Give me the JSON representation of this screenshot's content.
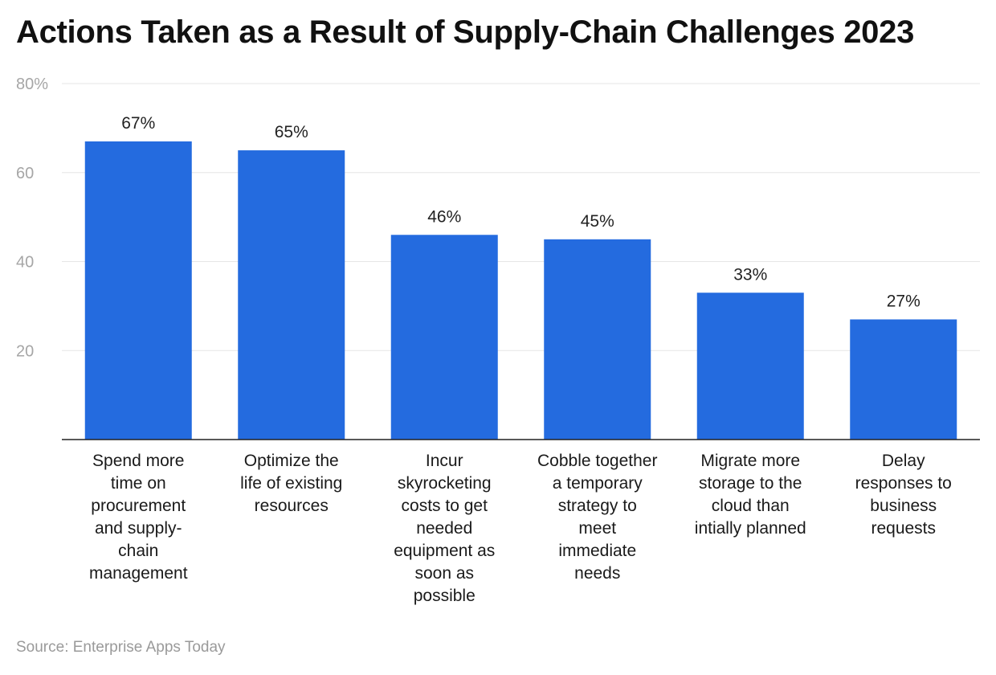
{
  "header": {
    "title": "Actions Taken as a Result of Supply-Chain Challenges 2023"
  },
  "footer": {
    "source": "Source: Enterprise Apps Today"
  },
  "chart_data": {
    "type": "bar",
    "title": "Actions Taken as a Result of Supply-Chain Challenges 2023",
    "xlabel": "",
    "ylabel": "",
    "categories": [
      "Spend more time on procurement and supply-chain management",
      "Optimize the life of existing resources",
      "Incur skyrocketing costs to get needed equipment as soon as possible",
      "Cobble together a temporary strategy to meet immediate needs",
      "Migrate more storage to the cloud than intially planned",
      "Delay responses to business requests"
    ],
    "category_lines": [
      [
        "Spend more",
        "time on",
        "procurement",
        "and supply-",
        "chain",
        "management"
      ],
      [
        "Optimize the",
        "life of existing",
        "resources"
      ],
      [
        "Incur",
        "skyrocketing",
        "costs to get",
        "needed",
        "equipment as",
        "soon as",
        "possible"
      ],
      [
        "Cobble together",
        "a temporary",
        "strategy to",
        "meet",
        "immediate",
        "needs"
      ],
      [
        "Migrate more",
        "storage to the",
        "cloud than",
        "intially planned"
      ],
      [
        "Delay",
        "responses to",
        "business",
        "requests"
      ]
    ],
    "values": [
      67,
      65,
      46,
      45,
      33,
      27
    ],
    "data_labels": [
      "67%",
      "65%",
      "46%",
      "45%",
      "33%",
      "27%"
    ],
    "ylim": [
      0,
      80
    ],
    "yticks": [
      20,
      40,
      60,
      80
    ],
    "ytick_labels": [
      "20",
      "40",
      "60",
      "80%"
    ],
    "grid": true,
    "legend": "none",
    "bar_color": "#246bdf",
    "grid_color": "#e6e6e6",
    "axis_color": "#222222"
  }
}
